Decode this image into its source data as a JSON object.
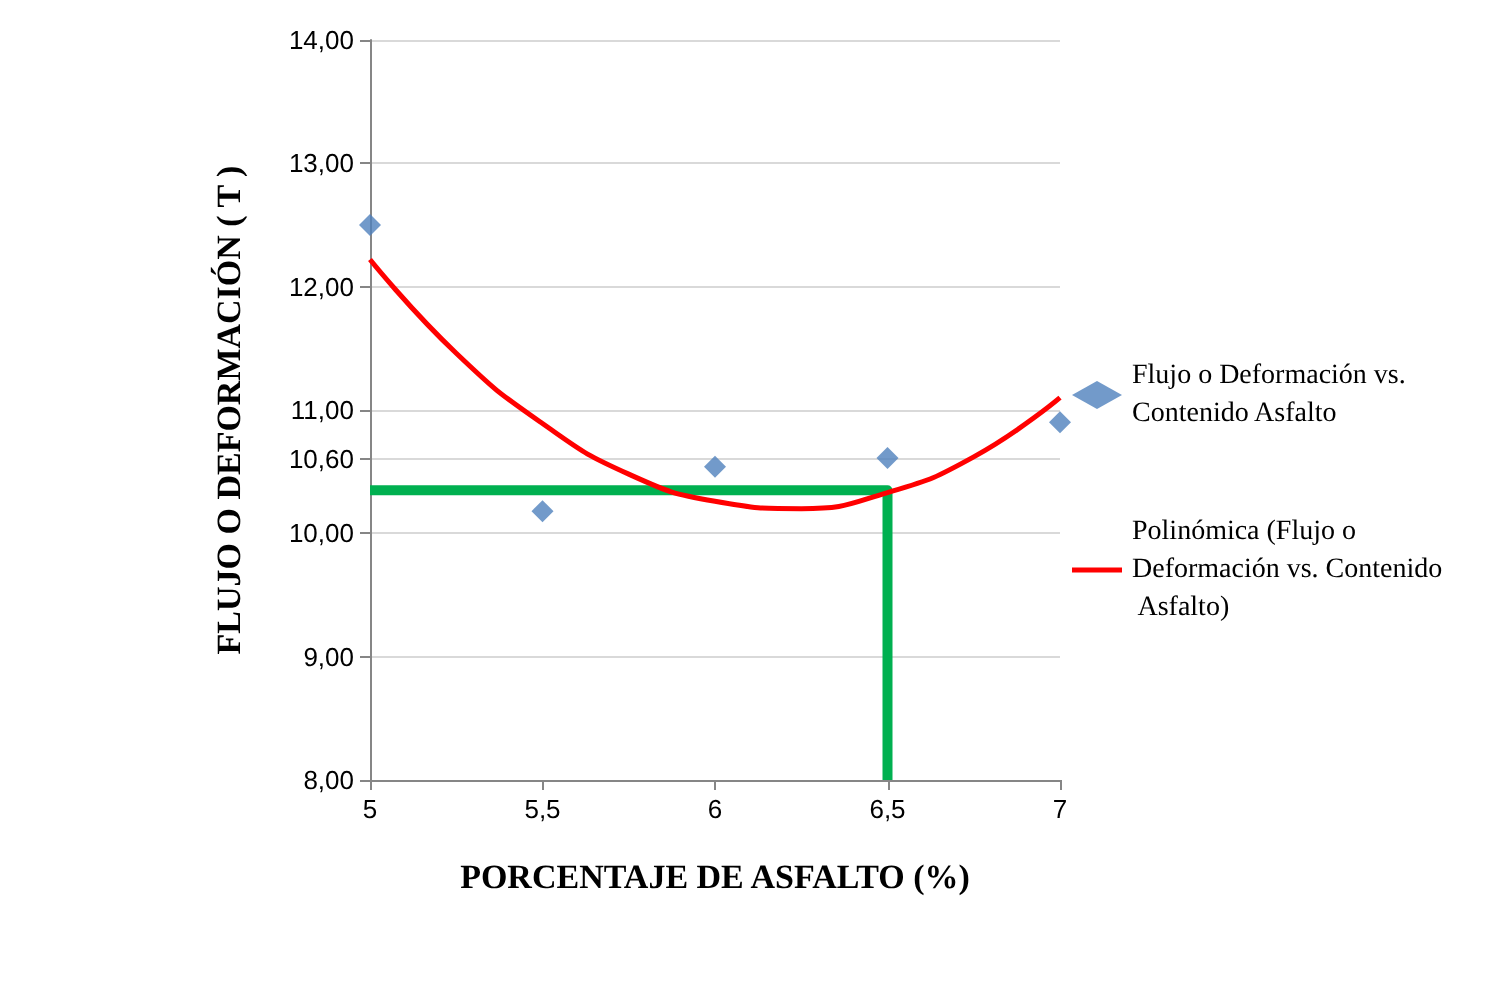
{
  "chart_data": {
    "type": "scatter",
    "xlabel": "PORCENTAJE DE ASFALTO (%)",
    "ylabel": "FLUJO O DEFORMACIÓN ( T )",
    "xlim": [
      5,
      7
    ],
    "xticks": [
      5,
      {
        "value": 5.5,
        "label": "5,5"
      },
      6,
      {
        "value": 6.5,
        "label": "6,5"
      },
      7
    ],
    "ylim": [
      8,
      14
    ],
    "yticks": [
      {
        "value": 8,
        "label": "8,00"
      },
      {
        "value": 9,
        "label": "9,00"
      },
      {
        "value": 10,
        "label": "10,00"
      },
      {
        "value": 10.6,
        "label": "10,60"
      },
      {
        "value": 11,
        "label": "11,00"
      },
      {
        "value": 12,
        "label": "12,00"
      },
      {
        "value": 13,
        "label": "13,00"
      },
      {
        "value": 14,
        "label": "14,00"
      }
    ],
    "grid": "y",
    "legend": "right",
    "series": [
      {
        "name": "Flujo o Deformación vs. Contenido Asfalto",
        "marker": "diamond",
        "color": "#4f81bd",
        "x": [
          5,
          5.5,
          6,
          6.5,
          7
        ],
        "values": [
          12.5,
          10.18,
          10.54,
          10.61,
          10.9
        ]
      },
      {
        "name": "Polinómica (Flujo o Deformación vs. Contenido Asfalto)",
        "type": "line",
        "marker": "none",
        "color": "#ff0000",
        "x": [
          5,
          5.25,
          5.5,
          5.75,
          6,
          6.25,
          6.5,
          6.75,
          7
        ],
        "values": [
          12.22,
          11.46,
          10.89,
          10.48,
          10.26,
          10.2,
          10.33,
          10.62,
          11.1
        ]
      },
      {
        "type": "line",
        "marker": "none",
        "color": "#00b050",
        "x": [
          5,
          6.5,
          6.5
        ],
        "values": [
          10.35,
          10.35,
          8
        ]
      }
    ]
  }
}
